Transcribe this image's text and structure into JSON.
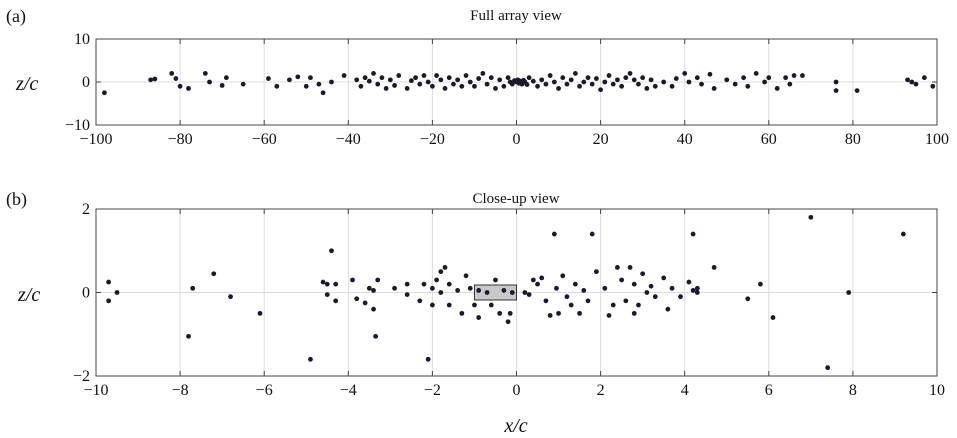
{
  "chart_data": [
    {
      "panel_label": "(a)",
      "type": "scatter",
      "title": "Full array view",
      "xlabel": "",
      "ylabel": "z/c",
      "xlim": [
        -100,
        100
      ],
      "ylim": [
        -10,
        10
      ],
      "xticks": [
        -100,
        -80,
        -60,
        -40,
        -20,
        0,
        20,
        40,
        60,
        80,
        100
      ],
      "yticks": [
        -10,
        0,
        10
      ],
      "grid": true,
      "points": [
        [
          -98,
          -2.5
        ],
        [
          -87,
          0.5
        ],
        [
          -86,
          0.7
        ],
        [
          -82,
          2
        ],
        [
          -81,
          0.8
        ],
        [
          -80,
          -1
        ],
        [
          -78,
          -1.5
        ],
        [
          -74,
          2
        ],
        [
          -73,
          0
        ],
        [
          -70,
          -0.8
        ],
        [
          -69,
          1
        ],
        [
          -65,
          -0.5
        ],
        [
          -59,
          0.8
        ],
        [
          -57,
          -1
        ],
        [
          -54,
          0.5
        ],
        [
          -52,
          1.2
        ],
        [
          -50,
          -1
        ],
        [
          -49,
          1
        ],
        [
          -47,
          -0.5
        ],
        [
          -46,
          -2.5
        ],
        [
          -44,
          0
        ],
        [
          -41,
          1.5
        ],
        [
          -38,
          0.5
        ],
        [
          -37,
          -1
        ],
        [
          -36,
          1
        ],
        [
          -35,
          0.2
        ],
        [
          -34,
          2
        ],
        [
          -33,
          -0.5
        ],
        [
          -32,
          1
        ],
        [
          -31,
          -1.5
        ],
        [
          -30,
          0.5
        ],
        [
          -29,
          -0.8
        ],
        [
          -28,
          1.5
        ],
        [
          -26,
          -1.5
        ],
        [
          -25,
          0.3
        ],
        [
          -24,
          1
        ],
        [
          -23,
          -0.5
        ],
        [
          -22,
          1.5
        ],
        [
          -21,
          0
        ],
        [
          -20,
          -1
        ],
        [
          -19,
          1.5
        ],
        [
          -18,
          0.5
        ],
        [
          -17,
          -1.5
        ],
        [
          -16,
          1
        ],
        [
          -15,
          -0.5
        ],
        [
          -14,
          0.5
        ],
        [
          -13,
          -1
        ],
        [
          -12,
          1.5
        ],
        [
          -11,
          0
        ],
        [
          -10,
          -1
        ],
        [
          -9,
          0.8
        ],
        [
          -8,
          2
        ],
        [
          -7,
          -0.5
        ],
        [
          -6,
          1
        ],
        [
          -5,
          -1.5
        ],
        [
          -4,
          0.5
        ],
        [
          -3,
          -1
        ],
        [
          -2,
          1
        ],
        [
          -1.5,
          0
        ],
        [
          -1,
          -0.5
        ],
        [
          -0.5,
          0.3
        ],
        [
          0,
          0
        ],
        [
          0.3,
          0.5
        ],
        [
          0.6,
          -0.3
        ],
        [
          1,
          0.2
        ],
        [
          1.3,
          -0.5
        ],
        [
          1.7,
          0.4
        ],
        [
          2,
          0
        ],
        [
          2.5,
          -0.6
        ],
        [
          3,
          1
        ],
        [
          4,
          0.2
        ],
        [
          5,
          -1
        ],
        [
          6,
          0.5
        ],
        [
          7,
          -0.5
        ],
        [
          8,
          1.5
        ],
        [
          9,
          0
        ],
        [
          10,
          -1.5
        ],
        [
          11,
          1
        ],
        [
          12,
          -0.5
        ],
        [
          13,
          0.5
        ],
        [
          14,
          2
        ],
        [
          15,
          -1
        ],
        [
          16,
          0
        ],
        [
          17,
          1
        ],
        [
          18,
          -0.5
        ],
        [
          19,
          0.8
        ],
        [
          20,
          -1.8
        ],
        [
          21,
          0
        ],
        [
          22,
          1.5
        ],
        [
          23,
          -0.5
        ],
        [
          24,
          0.5
        ],
        [
          25,
          -1
        ],
        [
          26,
          1
        ],
        [
          27,
          2
        ],
        [
          28,
          0.5
        ],
        [
          29,
          -0.5
        ],
        [
          30,
          1
        ],
        [
          31,
          -1.5
        ],
        [
          32,
          0.5
        ],
        [
          33,
          -1
        ],
        [
          35,
          0
        ],
        [
          37,
          -1
        ],
        [
          38,
          0.8
        ],
        [
          40,
          2
        ],
        [
          41,
          0
        ],
        [
          43,
          1
        ],
        [
          44,
          -0.5
        ],
        [
          46,
          1.8
        ],
        [
          47,
          -1.5
        ],
        [
          50,
          0.5
        ],
        [
          52,
          -0.5
        ],
        [
          54,
          1
        ],
        [
          55,
          -1
        ],
        [
          57,
          2
        ],
        [
          59,
          0
        ],
        [
          60,
          1
        ],
        [
          62,
          -1.5
        ],
        [
          64,
          1
        ],
        [
          65,
          -0.5
        ],
        [
          66,
          1.5
        ],
        [
          68,
          1.5
        ],
        [
          76,
          0
        ],
        [
          76,
          -2
        ],
        [
          81,
          -2
        ],
        [
          93,
          0.5
        ],
        [
          94,
          0
        ],
        [
          95,
          -0.5
        ],
        [
          97,
          1
        ],
        [
          99,
          -1
        ]
      ]
    },
    {
      "panel_label": "(b)",
      "type": "scatter",
      "title": "Close-up view",
      "xlabel": "x/c",
      "ylabel": "z/c",
      "xlim": [
        -10,
        10
      ],
      "ylim": [
        -2,
        2
      ],
      "xticks": [
        -10,
        -8,
        -6,
        -4,
        -2,
        0,
        2,
        4,
        6,
        8,
        10
      ],
      "yticks": [
        -2,
        0,
        2
      ],
      "grid": true,
      "highlight_rect": {
        "x": [
          -1,
          0
        ],
        "z": [
          -0.18,
          0.18
        ],
        "fill": "#c8c8c8"
      },
      "points": [
        [
          -9.7,
          0.25
        ],
        [
          -9.7,
          -0.2
        ],
        [
          -9.5,
          0
        ],
        [
          -7.7,
          0.1
        ],
        [
          -7.8,
          -1.05
        ],
        [
          -7.2,
          0.45
        ],
        [
          -6.8,
          -0.1
        ],
        [
          -6.1,
          -0.5
        ],
        [
          -4.9,
          -1.6
        ],
        [
          -4.6,
          0.25
        ],
        [
          -4.5,
          -0.05
        ],
        [
          -4.4,
          1
        ],
        [
          -4.3,
          -0.2
        ],
        [
          -4.5,
          0.2
        ],
        [
          -4.3,
          0.2
        ],
        [
          -3.9,
          0.3
        ],
        [
          -3.8,
          -0.15
        ],
        [
          -3.6,
          -0.25
        ],
        [
          -3.5,
          0.1
        ],
        [
          -3.4,
          -0.4
        ],
        [
          -3.35,
          -1.05
        ],
        [
          -3.3,
          0.3
        ],
        [
          -3.4,
          0.05
        ],
        [
          -2.6,
          0.2
        ],
        [
          -2.6,
          -0.05
        ],
        [
          -2.3,
          -0.2
        ],
        [
          -2.2,
          0.2
        ],
        [
          -2.1,
          -1.6
        ],
        [
          -2,
          0.1
        ],
        [
          -2,
          -0.3
        ],
        [
          -1.9,
          0.3
        ],
        [
          -1.8,
          0.5
        ],
        [
          -1.8,
          0
        ],
        [
          -1.7,
          0.6
        ],
        [
          -1.6,
          -0.3
        ],
        [
          -1.6,
          0.2
        ],
        [
          -1.4,
          0.05
        ],
        [
          -1.3,
          -0.5
        ],
        [
          -1.2,
          0.4
        ],
        [
          -1.1,
          0.1
        ],
        [
          -1,
          -0.3
        ],
        [
          -0.9,
          -0.6
        ],
        [
          -0.9,
          0.05
        ],
        [
          -0.7,
          0
        ],
        [
          -0.6,
          -0.3
        ],
        [
          -0.5,
          0.3
        ],
        [
          -0.4,
          -0.5
        ],
        [
          -0.3,
          0.05
        ],
        [
          -0.2,
          -0.7
        ],
        [
          -0.15,
          -0.5
        ],
        [
          -0.1,
          0
        ],
        [
          0.2,
          0
        ],
        [
          0.3,
          -0.05
        ],
        [
          0.4,
          0.3
        ],
        [
          0.5,
          0.2
        ],
        [
          0.6,
          0.35
        ],
        [
          0.7,
          -0.2
        ],
        [
          0.8,
          -0.55
        ],
        [
          0.9,
          1.4
        ],
        [
          0.95,
          0.1
        ],
        [
          1,
          -0.5
        ],
        [
          1.1,
          0.4
        ],
        [
          1.2,
          -0.1
        ],
        [
          1.3,
          -0.3
        ],
        [
          1.4,
          0.2
        ],
        [
          1.5,
          -0.5
        ],
        [
          1.6,
          0.05
        ],
        [
          1.7,
          -0.2
        ],
        [
          1.8,
          1.4
        ],
        [
          1.9,
          0.5
        ],
        [
          2.1,
          0.1
        ],
        [
          2.2,
          -0.55
        ],
        [
          2.3,
          -0.3
        ],
        [
          2.5,
          0.3
        ],
        [
          2.6,
          -0.2
        ],
        [
          2.7,
          0.6
        ],
        [
          2.8,
          -0.5
        ],
        [
          2.8,
          0.2
        ],
        [
          2.9,
          -0.3
        ],
        [
          3,
          0.45
        ],
        [
          3.1,
          0
        ],
        [
          3.2,
          0.15
        ],
        [
          3.3,
          -0.1
        ],
        [
          3.5,
          0.35
        ],
        [
          3.6,
          -0.4
        ],
        [
          3.7,
          0.1
        ],
        [
          3.9,
          -0.1
        ],
        [
          4.2,
          1.4
        ],
        [
          4.2,
          0.05
        ],
        [
          4.3,
          0
        ],
        [
          4.3,
          0.1
        ],
        [
          4.7,
          0.6
        ],
        [
          5.5,
          -0.15
        ],
        [
          5.8,
          0.2
        ],
        [
          6.1,
          -0.6
        ],
        [
          7,
          1.8
        ],
        [
          7.4,
          -1.8
        ],
        [
          7.9,
          0
        ],
        [
          9.2,
          1.4
        ],
        [
          4.1,
          0.25
        ],
        [
          2.4,
          0.6
        ],
        [
          -2.9,
          0.1
        ]
      ]
    }
  ]
}
